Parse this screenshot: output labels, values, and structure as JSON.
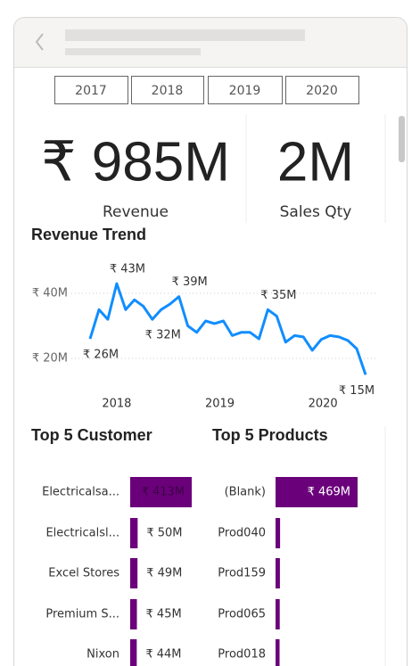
{
  "years": [
    "2017",
    "2018",
    "2019",
    "2020"
  ],
  "kpis": [
    {
      "value": "₹ 985M",
      "label": "Revenue"
    },
    {
      "value": "2M",
      "label": "Sales Qty"
    }
  ],
  "revenue_trend": {
    "type": "line",
    "title": "Revenue Trend",
    "values": [
      26,
      35,
      32,
      43,
      35,
      38,
      36,
      32,
      35,
      36.7,
      39,
      30,
      28,
      31.5,
      30.7,
      31.5,
      27,
      28,
      28,
      26,
      35,
      33,
      25,
      27,
      26.6,
      22.5,
      25.8,
      27,
      26.6,
      25.5,
      23,
      15
    ],
    "value_labels": [
      "₹ 26M",
      null,
      null,
      "₹ 43M",
      null,
      null,
      null,
      "₹ 32M",
      null,
      null,
      "₹ 39M",
      null,
      null,
      null,
      null,
      null,
      null,
      null,
      null,
      null,
      "₹ 35M",
      null,
      null,
      null,
      null,
      null,
      null,
      null,
      null,
      null,
      null,
      "₹ 15M"
    ],
    "xlim": [
      0,
      31
    ],
    "xticks": [
      {
        "value": 3,
        "label": "2018"
      },
      {
        "value": 14.6,
        "label": "2019"
      },
      {
        "value": 26.2,
        "label": "2020"
      }
    ],
    "ylim": [
      12,
      51
    ],
    "yticks": [
      {
        "value": 40,
        "label": "₹ 40M"
      },
      {
        "value": 20,
        "label": "₹ 20M"
      }
    ],
    "color": "#118dff",
    "grid": true
  },
  "top_customers": {
    "type": "bar",
    "title": "Top 5 Customer",
    "categories": [
      "Electricalsa...",
      "Electricalsl...",
      "Excel Stores",
      "Premium S...",
      "Nixon"
    ],
    "values": [
      413,
      50,
      49,
      45,
      44
    ],
    "value_labels": [
      "₹ 413M",
      "₹ 50M",
      "₹ 49M",
      "₹ 45M",
      "₹ 44M"
    ],
    "color": "#6b007b"
  },
  "top_products": {
    "type": "bar",
    "title": "Top 5 Products",
    "categories": [
      "(Blank)",
      "Prod040",
      "Prod159",
      "Prod065",
      "Prod018"
    ],
    "values": [
      469,
      26,
      25,
      24,
      23
    ],
    "value_labels": [
      "₹ 469M",
      null,
      null,
      null,
      null
    ],
    "color": "#6b007b"
  }
}
